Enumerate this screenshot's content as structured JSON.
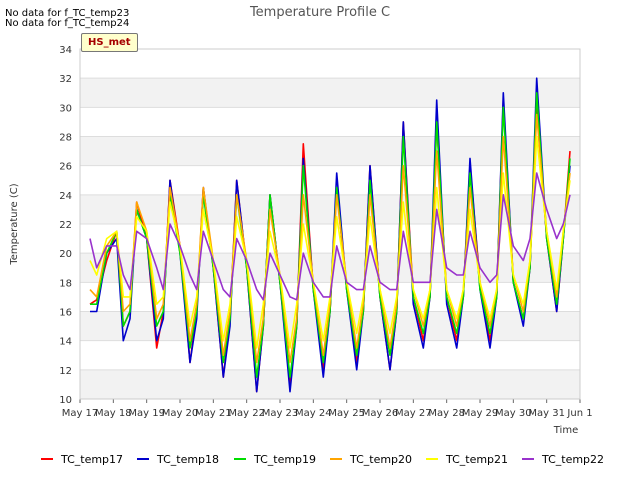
{
  "notes": [
    "No data for f_TC_temp23",
    "No data for f_TC_temp24"
  ],
  "badge": "HS_met",
  "chart_data": {
    "type": "line",
    "title": "Temperature Profile C",
    "xlabel": "Time",
    "ylabel": "Temperature (C)",
    "ylim": [
      10,
      34
    ],
    "yticks": [
      10,
      12,
      14,
      16,
      18,
      20,
      22,
      24,
      26,
      28,
      30,
      32,
      34
    ],
    "xlim": [
      0,
      15
    ],
    "xticks": [
      0,
      1,
      2,
      3,
      4,
      5,
      6,
      7,
      8,
      9,
      10,
      11,
      12,
      13,
      14,
      15
    ],
    "xtick_labels": [
      "May 17",
      "May 18",
      "May 19",
      "May 20",
      "May 21",
      "May 22",
      "May 23",
      "May 24",
      "May 25",
      "May 26",
      "May 27",
      "May 28",
      "May 29",
      "May 30",
      "May 31",
      "Jun 1"
    ],
    "grid": true,
    "legend_position": "bottom",
    "x": [
      0.3,
      0.5,
      0.8,
      1.1,
      1.3,
      1.5,
      1.7,
      2.0,
      2.3,
      2.5,
      2.7,
      3.0,
      3.3,
      3.5,
      3.7,
      4.0,
      4.3,
      4.5,
      4.7,
      5.0,
      5.3,
      5.5,
      5.7,
      6.0,
      6.3,
      6.5,
      6.7,
      7.0,
      7.3,
      7.5,
      7.7,
      8.0,
      8.3,
      8.5,
      8.7,
      9.0,
      9.3,
      9.5,
      9.7,
      10.0,
      10.3,
      10.5,
      10.7,
      11.0,
      11.3,
      11.5,
      11.7,
      12.0,
      12.3,
      12.5,
      12.7,
      13.0,
      13.3,
      13.5,
      13.7,
      14.0,
      14.3,
      14.5,
      14.7
    ],
    "series": [
      {
        "name": "TC_temp17",
        "color": "#ff0000",
        "values": [
          16.5,
          16.8,
          19.5,
          21.5,
          15.0,
          16.0,
          23.5,
          21.0,
          13.5,
          16.0,
          25.0,
          20.5,
          12.5,
          16.0,
          24.5,
          19.0,
          11.5,
          15.5,
          25.0,
          19.0,
          10.5,
          15.0,
          24.0,
          18.0,
          11.0,
          15.0,
          27.5,
          17.5,
          12.0,
          16.0,
          24.5,
          17.5,
          12.5,
          16.0,
          26.0,
          17.0,
          12.0,
          16.0,
          29.0,
          17.0,
          14.0,
          17.0,
          29.0,
          17.0,
          14.0,
          17.0,
          26.0,
          18.0,
          14.0,
          17.0,
          30.5,
          18.0,
          15.5,
          19.0,
          30.0,
          21.0,
          16.0,
          21.0,
          27.0
        ]
      },
      {
        "name": "TC_temp18",
        "color": "#0000cc",
        "values": [
          16.0,
          16.0,
          20.0,
          21.0,
          14.0,
          15.5,
          23.0,
          21.0,
          14.0,
          15.5,
          25.0,
          20.0,
          12.5,
          15.5,
          24.5,
          19.0,
          11.5,
          15.0,
          25.0,
          19.0,
          10.5,
          15.0,
          24.0,
          18.0,
          10.5,
          15.0,
          26.5,
          17.5,
          11.5,
          16.0,
          25.5,
          17.5,
          12.0,
          16.0,
          26.0,
          17.0,
          12.0,
          16.0,
          29.0,
          16.5,
          13.5,
          17.0,
          30.5,
          16.5,
          13.5,
          17.0,
          26.5,
          17.5,
          13.5,
          17.0,
          31.0,
          18.0,
          15.0,
          19.0,
          32.0,
          21.0,
          16.0,
          21.0,
          26.0
        ]
      },
      {
        "name": "TC_temp19",
        "color": "#00dd00",
        "values": [
          16.5,
          16.5,
          20.0,
          21.5,
          15.0,
          16.0,
          23.0,
          21.0,
          15.0,
          16.0,
          24.0,
          20.0,
          13.5,
          16.0,
          24.0,
          19.0,
          12.5,
          15.5,
          24.0,
          19.0,
          11.5,
          15.0,
          24.0,
          18.0,
          11.5,
          15.0,
          26.0,
          17.5,
          12.5,
          16.0,
          24.5,
          17.5,
          13.0,
          16.0,
          25.0,
          17.0,
          13.0,
          16.0,
          28.0,
          17.0,
          14.5,
          17.0,
          29.0,
          17.0,
          14.5,
          17.0,
          25.5,
          17.5,
          14.5,
          17.0,
          30.0,
          18.0,
          15.5,
          19.0,
          31.0,
          21.0,
          16.5,
          21.0,
          26.5
        ]
      },
      {
        "name": "TC_temp20",
        "color": "#ffa500",
        "values": [
          17.5,
          17.0,
          20.5,
          21.5,
          16.0,
          16.5,
          23.5,
          21.5,
          15.5,
          16.5,
          24.5,
          20.5,
          14.0,
          16.5,
          24.5,
          19.5,
          13.0,
          16.0,
          24.0,
          19.5,
          12.5,
          15.5,
          23.0,
          18.5,
          12.5,
          15.5,
          24.0,
          18.0,
          13.0,
          16.5,
          24.0,
          18.0,
          13.5,
          16.5,
          24.0,
          17.5,
          13.5,
          16.5,
          26.0,
          17.5,
          15.0,
          17.5,
          27.0,
          17.5,
          15.0,
          17.5,
          24.5,
          18.0,
          15.0,
          17.5,
          28.0,
          18.5,
          16.0,
          19.5,
          29.5,
          21.5,
          17.0,
          21.5,
          25.5
        ]
      },
      {
        "name": "TC_temp21",
        "color": "#ffff00",
        "values": [
          19.5,
          18.5,
          21.0,
          21.5,
          17.0,
          17.0,
          22.5,
          21.5,
          16.5,
          17.0,
          23.5,
          20.5,
          15.0,
          17.0,
          23.0,
          19.5,
          14.0,
          16.5,
          22.5,
          19.5,
          13.5,
          16.5,
          21.5,
          18.5,
          13.5,
          16.5,
          22.0,
          18.0,
          14.0,
          17.0,
          22.5,
          18.0,
          14.5,
          17.0,
          22.5,
          17.5,
          14.5,
          17.0,
          23.5,
          17.5,
          15.5,
          17.5,
          24.5,
          17.5,
          15.5,
          17.5,
          23.0,
          18.0,
          15.5,
          17.5,
          25.5,
          18.5,
          16.5,
          19.5,
          28.0,
          21.5,
          17.5,
          21.5,
          25.0
        ]
      },
      {
        "name": "TC_temp22",
        "color": "#9932cc",
        "values": [
          21.0,
          19.0,
          20.5,
          20.5,
          18.5,
          17.5,
          21.5,
          21.0,
          19.0,
          17.5,
          22.0,
          20.5,
          18.5,
          17.5,
          21.5,
          19.5,
          17.5,
          17.0,
          21.0,
          19.5,
          17.5,
          16.8,
          20.0,
          18.5,
          17.0,
          16.8,
          20.0,
          18.0,
          17.0,
          17.0,
          20.5,
          18.0,
          17.5,
          17.5,
          20.5,
          18.0,
          17.5,
          17.5,
          21.5,
          18.0,
          18.0,
          18.0,
          23.0,
          19.0,
          18.5,
          18.5,
          21.5,
          19.0,
          18.0,
          18.5,
          24.0,
          20.5,
          19.5,
          21.0,
          25.5,
          23.0,
          21.0,
          22.0,
          24.0
        ]
      }
    ]
  }
}
